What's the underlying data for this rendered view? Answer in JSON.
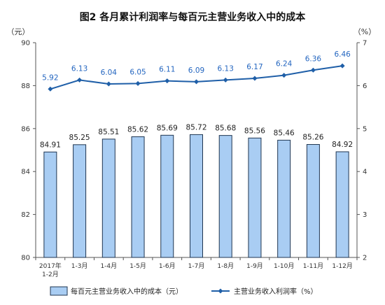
{
  "chart_data": {
    "type": "bar",
    "title": "图2  各月累计利润率与每百元主营业务收入中的成本",
    "left_unit": "（元）",
    "right_unit": "（%）",
    "categories": [
      "2017年\n1-2月",
      "1-3月",
      "1-4月",
      "1-5月",
      "1-6月",
      "1-7月",
      "1-8月",
      "1-9月",
      "1-10月",
      "1-11月",
      "1-12月"
    ],
    "series": [
      {
        "name": "每百元主营业务收入中的成本（元）",
        "type": "bar",
        "axis": "left",
        "values": [
          84.91,
          85.25,
          85.51,
          85.62,
          85.69,
          85.72,
          85.68,
          85.56,
          85.46,
          85.26,
          84.92
        ],
        "labels": [
          "84.91",
          "85.25",
          "85.51",
          "85.62",
          "85.69",
          "85.72",
          "85.68",
          "85.56",
          "85.46",
          "85.26",
          "84.92"
        ]
      },
      {
        "name": "主营业务收入利润率（%）",
        "type": "line",
        "axis": "right",
        "values": [
          5.92,
          6.13,
          6.04,
          6.05,
          6.11,
          6.09,
          6.13,
          6.17,
          6.24,
          6.36,
          6.46
        ],
        "labels": [
          "5.92",
          "6.13",
          "6.04",
          "6.05",
          "6.11",
          "6.09",
          "6.13",
          "6.17",
          "6.24",
          "6.36",
          "6.46"
        ]
      }
    ],
    "y_left": {
      "min": 80,
      "max": 90,
      "ticks": [
        "80",
        "82",
        "84",
        "86",
        "88",
        "90"
      ]
    },
    "y_right": {
      "min": 2,
      "max": 7,
      "ticks": [
        "2",
        "3",
        "4",
        "5",
        "6",
        "7"
      ]
    },
    "grid": false,
    "legend_position": "bottom",
    "colors": {
      "bar_fill": "#a9cdf3",
      "bar_stroke": "#1f3550",
      "line": "#1f5fa8",
      "line_label": "#2466c0",
      "axis": "#555555"
    }
  }
}
